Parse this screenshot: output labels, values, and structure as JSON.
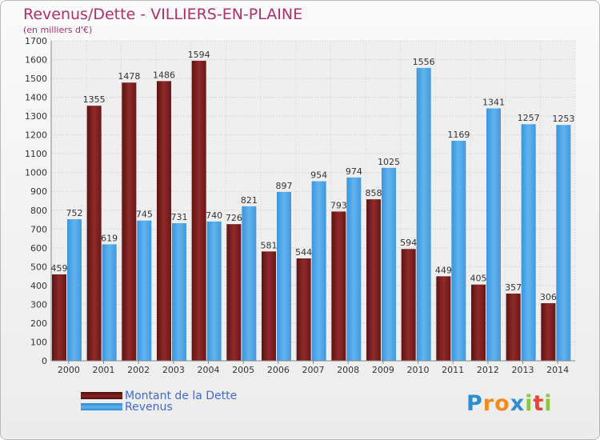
{
  "title": "Revenus/Dette - VILLIERS-EN-PLAINE",
  "subtitle": "(en milliers d'€)",
  "logo": {
    "letters": [
      "P",
      "r",
      "o",
      "x",
      "i",
      "t",
      "i"
    ],
    "colors": [
      "#2d8fd0",
      "#f08c1e",
      "#f08c1e",
      "#2d8fd0",
      "#8cc63f",
      "#e8443a",
      "#8cc63f"
    ]
  },
  "legend": [
    {
      "label": "Montant de la Dette",
      "color": "#7a1c1c"
    },
    {
      "label": "Revenus",
      "color": "#4aa3e6"
    }
  ],
  "chart_data": {
    "type": "bar",
    "categories": [
      "2000",
      "2001",
      "2002",
      "2003",
      "2004",
      "2005",
      "2006",
      "2007",
      "2008",
      "2009",
      "2010",
      "2011",
      "2012",
      "2013",
      "2014"
    ],
    "series": [
      {
        "name": "Montant de la Dette",
        "color": "#7a1c1c",
        "values": [
          459,
          1355,
          1478,
          1486,
          1594,
          726,
          581,
          544,
          793,
          858,
          594,
          449,
          405,
          357,
          306
        ]
      },
      {
        "name": "Revenus",
        "color": "#4aa3e6",
        "values": [
          752,
          619,
          745,
          731,
          740,
          821,
          897,
          954,
          974,
          1025,
          1556,
          1169,
          1341,
          1257,
          1253
        ]
      }
    ],
    "yticks": [
      0,
      100,
      200,
      300,
      400,
      500,
      600,
      700,
      800,
      900,
      1000,
      1100,
      1200,
      1300,
      1400,
      1500,
      1600,
      1700
    ],
    "ylim": [
      0,
      1700
    ],
    "grid": true,
    "legend_position": "bottom-left"
  }
}
